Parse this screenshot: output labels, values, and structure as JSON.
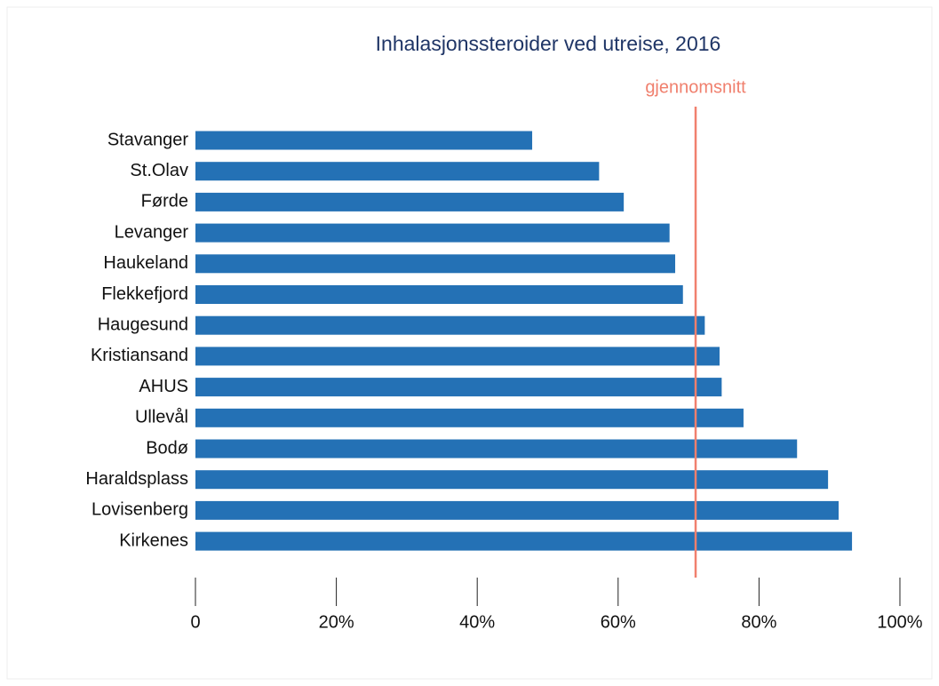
{
  "chart_data": {
    "type": "barh",
    "title": "Inhalasjonssteroider ved utreise, 2016",
    "categories": [
      "Stavanger",
      "St.Olav",
      "Førde",
      "Levanger",
      "Haukeland",
      "Flekkefjord",
      "Haugesund",
      "Kristiansand",
      "AHUS",
      "Ullevål",
      "Bodø",
      "Haraldsplass",
      "Lovisenberg",
      "Kirkenes"
    ],
    "values": [
      47.8,
      57.3,
      60.8,
      67.3,
      68.1,
      69.2,
      72.3,
      74.4,
      74.7,
      77.8,
      85.4,
      89.8,
      91.3,
      93.2
    ],
    "color": "#2471b5",
    "xlim": [
      0,
      100
    ],
    "xticks": [
      0,
      {
        "value": 20,
        "label": "20%"
      },
      {
        "value": 40,
        "label": "40%"
      },
      {
        "value": 60,
        "label": "60%"
      },
      {
        "value": 80,
        "label": "80%"
      },
      {
        "value": 100,
        "label": "100%"
      }
    ],
    "reference_line": {
      "value": 71,
      "label": "gjennomsnitt",
      "color": "#f0806e"
    }
  }
}
